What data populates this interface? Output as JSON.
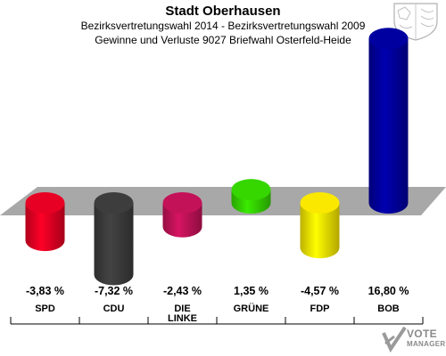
{
  "header": {
    "title": "Stadt Oberhausen",
    "subtitle1": "Bezirksvertretungswahl 2014 - Bezirksvertretungswahl 2009",
    "subtitle2": "Gewinne und Verluste 9027 Briefwahl Osterfeld-Heide"
  },
  "chart_data": {
    "type": "bar",
    "categories": [
      "SPD",
      "CDU",
      "DIE LINKE",
      "GRÜNE",
      "FDP",
      "BOB"
    ],
    "values": [
      -3.83,
      -7.32,
      -2.43,
      1.35,
      -4.57,
      16.8
    ],
    "value_labels": [
      "-3,83 %",
      "-7,32 %",
      "-2,43 %",
      "1,35 %",
      "-4,57 %",
      "16,80 %"
    ],
    "colors": [
      "#dd0022",
      "#3a3a3a",
      "#bb1155",
      "#33cc00",
      "#eedd00",
      "#000099"
    ],
    "ylim": [
      -8,
      18
    ],
    "grid": false
  },
  "branding": {
    "line1": "VOTE",
    "line2": "MANAGER",
    "crest": "coat-of-arms-icon",
    "logo": "votemanager-logo-icon"
  }
}
